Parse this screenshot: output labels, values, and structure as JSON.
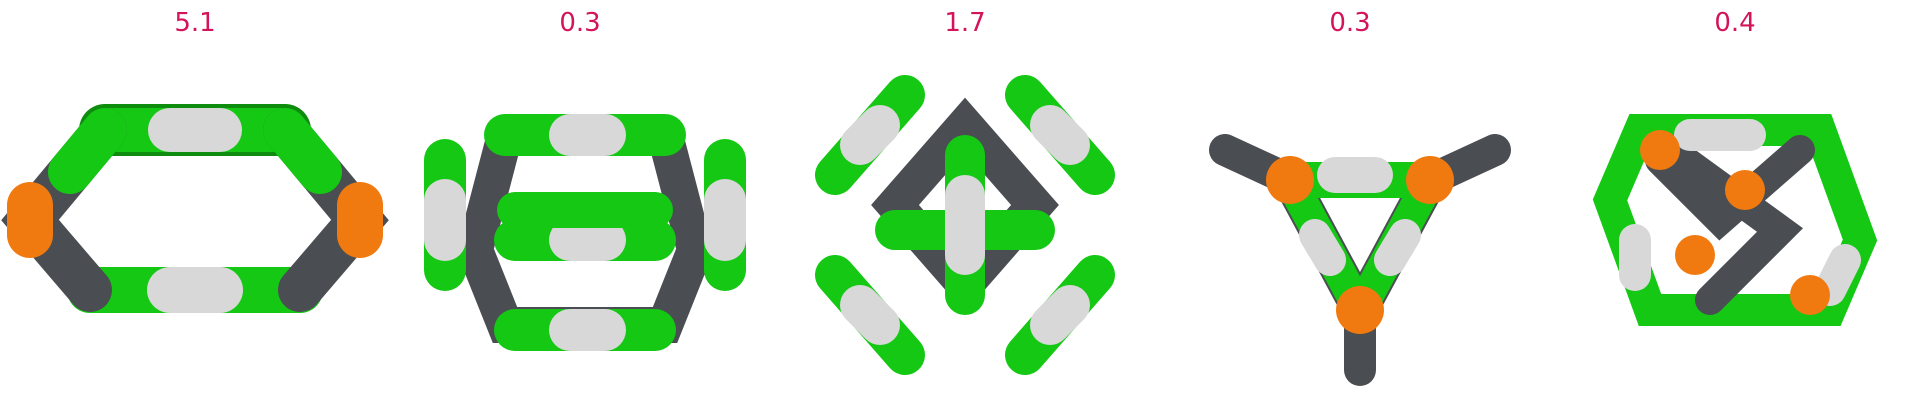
{
  "panels": [
    {
      "value": "5.1",
      "description_icon": "ring-structure-icon"
    },
    {
      "value": "0.3",
      "description_icon": "prism-structure-icon"
    },
    {
      "value": "1.7",
      "description_icon": "clover-structure-icon"
    },
    {
      "value": "0.3",
      "description_icon": "triangular-cage-icon"
    },
    {
      "value": "0.4",
      "description_icon": "cube-cage-icon"
    }
  ],
  "colors": {
    "label": "#d4145a",
    "green": "#14c814",
    "white": "#d8d8d8",
    "grey": "#4a4d52",
    "orange": "#f07a10"
  }
}
